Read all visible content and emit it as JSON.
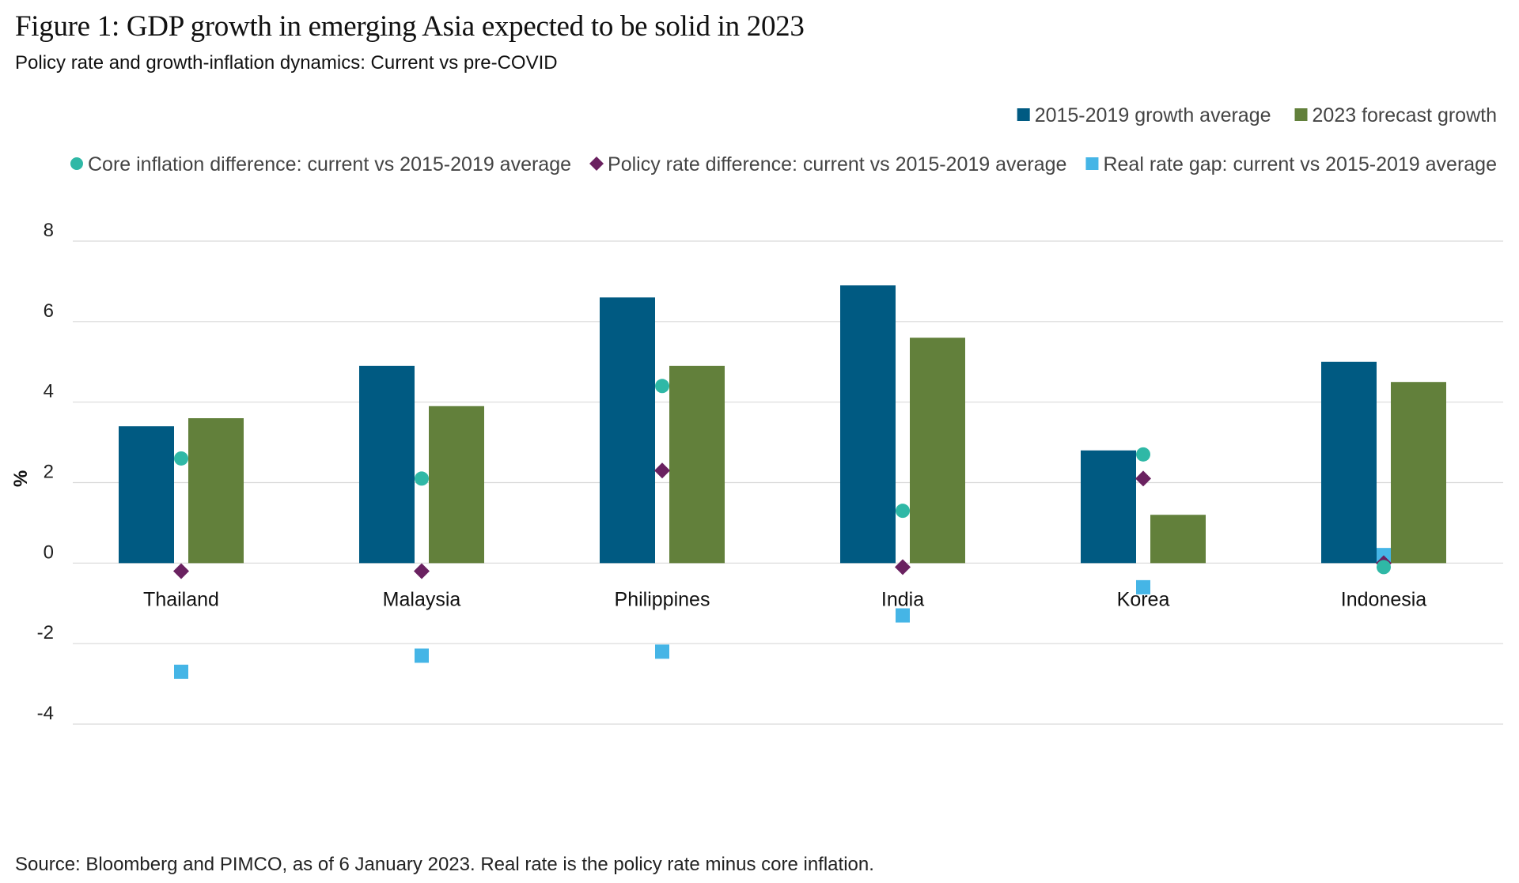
{
  "figure": {
    "title": "Figure 1: GDP growth in emerging Asia expected to be solid in 2023",
    "subtitle": "Policy rate and growth-inflation dynamics: Current vs pre-COVID",
    "source": "Source: Bloomberg and PIMCO, as of 6 January 2023. Real rate is the policy rate minus core inflation."
  },
  "colors": {
    "growth_2015_2019": "#005a82",
    "growth_2023": "#62803b",
    "core_inflation": "#2fb8a6",
    "policy_rate": "#6a2160",
    "real_rate_gap": "#45b5e6",
    "grid": "#d9d9d9"
  },
  "chart_data": {
    "type": "bar",
    "ylabel": "%",
    "xlabel": "",
    "ylim": [
      -4,
      8
    ],
    "yticks": [
      8,
      6,
      4,
      2,
      0,
      -2,
      -4
    ],
    "grid": true,
    "legend_position": "top-right",
    "categories": [
      "Thailand",
      "Malaysia",
      "Philippines",
      "India",
      "Korea",
      "Indonesia"
    ],
    "series": [
      {
        "name": "2015-2019 growth average",
        "kind": "bar",
        "marker": "square",
        "color": "#005a82",
        "values": [
          3.4,
          4.9,
          6.6,
          6.9,
          2.8,
          5.0
        ]
      },
      {
        "name": "2023 forecast growth",
        "kind": "bar",
        "marker": "square",
        "color": "#62803b",
        "values": [
          3.6,
          3.9,
          4.9,
          5.6,
          1.2,
          4.5
        ]
      },
      {
        "name": "Core inflation difference: current vs 2015-2019 average",
        "kind": "point",
        "marker": "circle",
        "color": "#2fb8a6",
        "values": [
          2.6,
          2.1,
          4.4,
          1.3,
          2.7,
          -0.1
        ]
      },
      {
        "name": "Policy rate difference: current vs 2015-2019 average",
        "kind": "point",
        "marker": "diamond",
        "color": "#6a2160",
        "values": [
          -0.2,
          -0.2,
          2.3,
          -0.1,
          2.1,
          0.0
        ]
      },
      {
        "name": "Real rate gap: current vs 2015-2019 average",
        "kind": "point",
        "marker": "square",
        "color": "#45b5e6",
        "values": [
          -2.7,
          -2.3,
          -2.2,
          -1.3,
          -0.6,
          0.2
        ]
      }
    ]
  }
}
